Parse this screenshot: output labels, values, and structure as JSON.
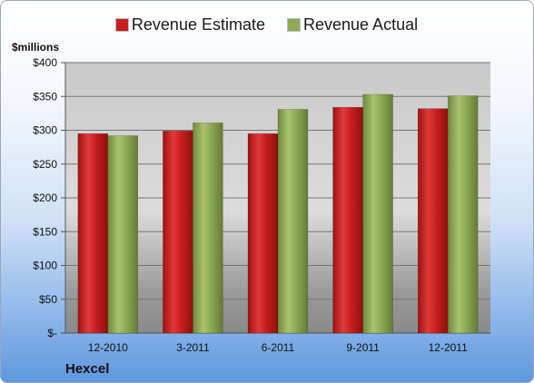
{
  "chart_data": {
    "type": "bar",
    "company": "Hexcel",
    "ylabel": "$millions",
    "categories": [
      "12-2010",
      "3-2011",
      "6-2011",
      "9-2011",
      "12-2011"
    ],
    "series": [
      {
        "name": "Revenue Estimate",
        "color": "#c81e1e",
        "values": [
          295,
          299,
          295,
          334,
          332
        ]
      },
      {
        "name": "Revenue Actual",
        "color": "#8faa55",
        "values": [
          292,
          311,
          331,
          353,
          351
        ]
      }
    ],
    "ylim": [
      0,
      400
    ],
    "yticks": [
      0,
      50,
      100,
      150,
      200,
      250,
      300,
      350,
      400
    ],
    "ytick_labels": [
      "$-",
      "$50",
      "$100",
      "$150",
      "$200",
      "$250",
      "$300",
      "$350",
      "$400"
    ],
    "grid": true,
    "legend_position": "top-center"
  }
}
